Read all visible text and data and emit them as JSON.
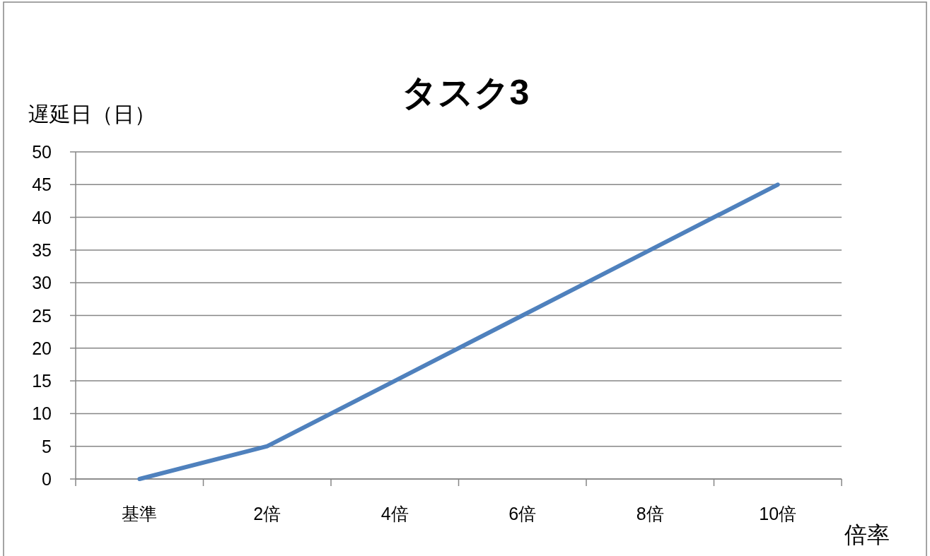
{
  "chart_data": {
    "type": "line",
    "title": "タスク3",
    "ylabel": "遅延日（日）",
    "xlabel": "倍率",
    "categories": [
      "基準",
      "2倍",
      "4倍",
      "6倍",
      "8倍",
      "10倍"
    ],
    "series": [
      {
        "color": "#4f81bd",
        "values": [
          0,
          5,
          15,
          25,
          35,
          45
        ]
      }
    ],
    "ylim": [
      0,
      50
    ],
    "yticks": [
      0,
      5,
      10,
      15,
      20,
      25,
      30,
      35,
      40,
      45,
      50
    ],
    "grid": "y"
  }
}
